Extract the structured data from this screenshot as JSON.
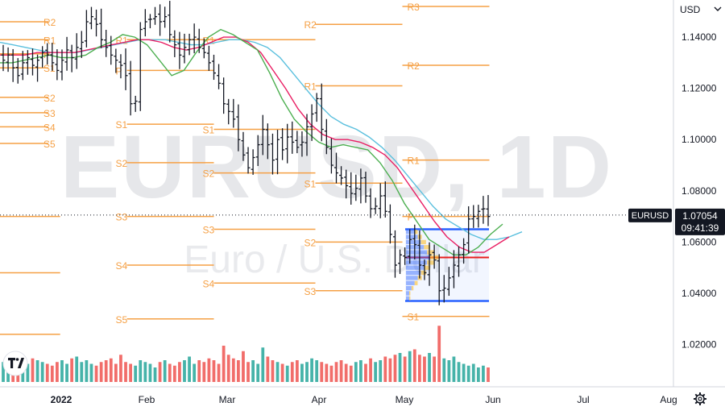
{
  "header": {
    "currency": "USD"
  },
  "watermark": {
    "title": "EURUSD, 1D",
    "subtitle": "Euro / U.S. Dollar"
  },
  "price_badge": {
    "symbol": "EURUSD",
    "price": "1.07054",
    "countdown": "09:41:39"
  },
  "colors": {
    "up": "#26a69a",
    "down": "#ef5350",
    "bars": "#131722",
    "ma_fast": "#4caf50",
    "ma_mid": "#e91e63",
    "ma_slow": "#5bc0de",
    "pivot": "#f5a045",
    "vp_box": "#2962ff"
  },
  "icons": {
    "logo": "tradingview-logo-icon",
    "settings": "gear-icon"
  },
  "chart_data": {
    "type": "ohlc",
    "symbol": "EURUSD",
    "interval": "1D",
    "ylim": [
      1.0035,
      1.1545
    ],
    "y_ticks": [
      "1.14000",
      "1.12000",
      "1.10000",
      "1.08000",
      "1.06000",
      "1.04000",
      "1.02000"
    ],
    "y_tick_values": [
      1.14,
      1.12,
      1.1,
      1.08,
      1.06,
      1.04,
      1.02
    ],
    "x_ticks": [
      "2022",
      "Feb",
      "Mar",
      "Apr",
      "May",
      "Jun",
      "Jul",
      "Aug"
    ],
    "last_price": 1.07054,
    "close_series": [
      1.131,
      1.133,
      1.128,
      1.125,
      1.13,
      1.132,
      1.129,
      1.131,
      1.134,
      1.133,
      1.13,
      1.127,
      1.131,
      1.135,
      1.132,
      1.136,
      1.138,
      1.146,
      1.148,
      1.145,
      1.139,
      1.136,
      1.133,
      1.131,
      1.129,
      1.125,
      1.114,
      1.115,
      1.143,
      1.146,
      1.147,
      1.148,
      1.146,
      1.148,
      1.141,
      1.137,
      1.133,
      1.136,
      1.139,
      1.14,
      1.136,
      1.134,
      1.13,
      1.126,
      1.122,
      1.114,
      1.111,
      1.108,
      1.1,
      1.094,
      1.089,
      1.093,
      1.098,
      1.104,
      1.098,
      1.092,
      1.1,
      1.096,
      1.101,
      1.099,
      1.097,
      1.099,
      1.105,
      1.11,
      1.116,
      1.104,
      1.097,
      1.09,
      1.087,
      1.085,
      1.082,
      1.079,
      1.081,
      1.085,
      1.078,
      1.073,
      1.074,
      1.078,
      1.072,
      1.063,
      1.051,
      1.055,
      1.054,
      1.061,
      1.059,
      1.051,
      1.048,
      1.055,
      1.053,
      1.041,
      1.042,
      1.046,
      1.051,
      1.055,
      1.059,
      1.069,
      1.07,
      1.072,
      1.073,
      1.07
    ],
    "ma_fast": [
      1.13,
      1.13,
      1.131,
      1.132,
      1.133,
      1.132,
      1.132,
      1.133,
      1.136,
      1.138,
      1.141,
      1.14,
      1.137,
      1.131,
      1.125,
      1.127,
      1.134,
      1.14,
      1.143,
      1.141,
      1.138,
      1.135,
      1.126,
      1.116,
      1.108,
      1.103,
      1.099,
      1.097,
      1.098,
      1.097,
      1.096,
      1.091,
      1.084,
      1.075,
      1.068,
      1.061,
      1.058,
      1.055,
      1.055,
      1.058,
      1.063,
      1.067
    ],
    "ma_mid": [
      1.133,
      1.133,
      1.133,
      1.134,
      1.134,
      1.134,
      1.134,
      1.135,
      1.136,
      1.137,
      1.138,
      1.139,
      1.139,
      1.138,
      1.136,
      1.135,
      1.136,
      1.138,
      1.14,
      1.14,
      1.138,
      1.134,
      1.127,
      1.12,
      1.112,
      1.106,
      1.102,
      1.1,
      1.1,
      1.099,
      1.097,
      1.094,
      1.089,
      1.082,
      1.075,
      1.068,
      1.062,
      1.058,
      1.056,
      1.056,
      1.059,
      1.062
    ],
    "ma_slow": [
      1.138,
      1.137,
      1.136,
      1.135,
      1.134,
      1.134,
      1.134,
      1.135,
      1.136,
      1.137,
      1.138,
      1.139,
      1.139,
      1.139,
      1.138,
      1.137,
      1.137,
      1.138,
      1.139,
      1.139,
      1.138,
      1.136,
      1.132,
      1.126,
      1.12,
      1.114,
      1.109,
      1.106,
      1.104,
      1.101,
      1.097,
      1.092,
      1.086,
      1.08,
      1.074,
      1.069,
      1.066,
      1.063,
      1.061,
      1.061,
      1.062,
      1.064
    ],
    "volume_relative": [
      0.55,
      0.6,
      0.5,
      0.45,
      0.7,
      0.5,
      0.65,
      0.6,
      0.55,
      0.5,
      0.45,
      0.55,
      0.6,
      0.5,
      0.65,
      0.7,
      0.55,
      0.6,
      0.5,
      0.45,
      0.55,
      0.6,
      0.65,
      0.5,
      0.75,
      0.55,
      0.5,
      0.45,
      0.6,
      0.55,
      0.5,
      0.4,
      0.55,
      0.6,
      0.5,
      0.45,
      0.55,
      0.6,
      0.7,
      0.5,
      0.6,
      0.55,
      0.65,
      0.6,
      0.5,
      1.0,
      0.75,
      0.65,
      0.6,
      0.85,
      0.55,
      0.6,
      0.5,
      0.95,
      0.7,
      0.6,
      0.55,
      0.5,
      0.45,
      0.55,
      0.6,
      0.5,
      0.55,
      0.65,
      0.6,
      0.55,
      0.5,
      0.45,
      0.55,
      0.6,
      0.5,
      0.45,
      0.55,
      0.6,
      0.5,
      0.65,
      0.55,
      0.6,
      0.7,
      0.65,
      0.75,
      0.8,
      0.7,
      0.85,
      0.9,
      0.75,
      0.7,
      0.8,
      0.7,
      1.55,
      0.65,
      0.6,
      0.7,
      0.55,
      0.5,
      0.45,
      0.5,
      0.4,
      0.45,
      0.4
    ],
    "pivots": [
      {
        "label": "R2",
        "value": 1.146,
        "x0": 0.0,
        "x1": 0.0667
      },
      {
        "label": "R1",
        "value": 1.139,
        "x0": 0.0,
        "x1": 0.0667
      },
      {
        "label": "P",
        "value": 1.1335,
        "x0": 0.0,
        "x1": 0.0667
      },
      {
        "label": "S1",
        "value": 1.128,
        "x0": 0.0,
        "x1": 0.0667
      },
      {
        "label": "S2",
        "value": 1.1165,
        "x0": 0.0,
        "x1": 0.0667
      },
      {
        "label": "S3",
        "value": 1.1105,
        "x0": 0.0,
        "x1": 0.0667
      },
      {
        "label": "S4",
        "value": 1.105,
        "x0": 0.0,
        "x1": 0.0667
      },
      {
        "label": "S5",
        "value": 1.0985,
        "x0": 0.0,
        "x1": 0.0667
      },
      {
        "label": "R1",
        "value": 1.139,
        "x0": 0.175,
        "x1": 0.295
      },
      {
        "label": "P",
        "value": 1.127,
        "x0": 0.175,
        "x1": 0.295
      },
      {
        "label": "S1",
        "value": 1.106,
        "x0": 0.175,
        "x1": 0.295
      },
      {
        "label": "S2",
        "value": 1.091,
        "x0": 0.175,
        "x1": 0.295
      },
      {
        "label": "S3",
        "value": 1.07,
        "x0": 0.175,
        "x1": 0.295
      },
      {
        "label": "S4",
        "value": 1.051,
        "x0": 0.175,
        "x1": 0.295
      },
      {
        "label": "S5",
        "value": 1.03,
        "x0": 0.175,
        "x1": 0.295
      },
      {
        "label": "R1",
        "value": 1.139,
        "x0": 0.295,
        "x1": 0.435
      },
      {
        "label": "S1",
        "value": 1.104,
        "x0": 0.295,
        "x1": 0.435
      },
      {
        "label": "S2",
        "value": 1.087,
        "x0": 0.295,
        "x1": 0.435
      },
      {
        "label": "S3",
        "value": 1.065,
        "x0": 0.295,
        "x1": 0.435
      },
      {
        "label": "S4",
        "value": 1.044,
        "x0": 0.295,
        "x1": 0.435
      },
      {
        "label": "R2",
        "value": 1.145,
        "x0": 0.435,
        "x1": 0.555
      },
      {
        "label": "R1",
        "value": 1.121,
        "x0": 0.435,
        "x1": 0.555
      },
      {
        "label": "S1",
        "value": 1.083,
        "x0": 0.435,
        "x1": 0.555
      },
      {
        "label": "S2",
        "value": 1.06,
        "x0": 0.435,
        "x1": 0.555
      },
      {
        "label": "S3",
        "value": 1.041,
        "x0": 0.435,
        "x1": 0.555
      },
      {
        "label": "R3",
        "value": 1.152,
        "x0": 0.555,
        "x1": 0.675
      },
      {
        "label": "R2",
        "value": 1.129,
        "x0": 0.555,
        "x1": 0.675
      },
      {
        "label": "R1",
        "value": 1.092,
        "x0": 0.555,
        "x1": 0.675
      },
      {
        "label": "P",
        "value": 1.07,
        "x0": 0.555,
        "x1": 0.675
      },
      {
        "label": "S1",
        "value": 1.031,
        "x0": 0.555,
        "x1": 0.675
      }
    ],
    "vp_box": {
      "high": 1.065,
      "low": 1.037,
      "poc": 1.054
    },
    "watermark_levels_left": [
      1.07,
      1.048,
      1.024
    ],
    "watermark_levels_x1": 0.083
  }
}
